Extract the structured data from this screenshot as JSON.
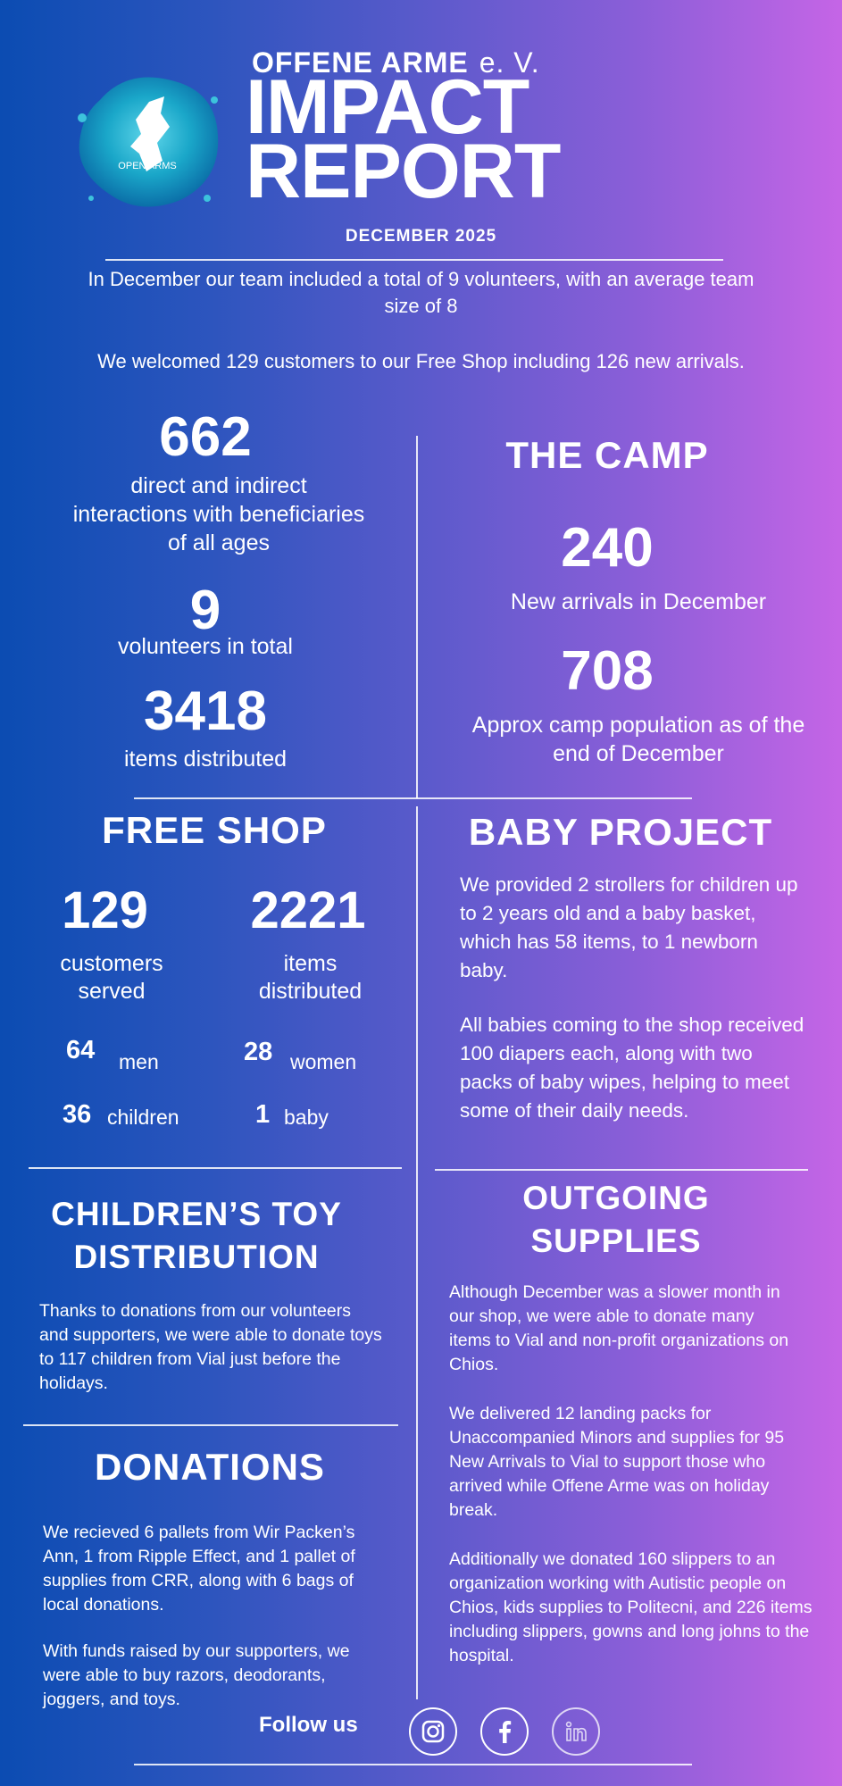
{
  "header": {
    "logo_text": "OPEN ARMS",
    "org_name": "OFFENE ARME",
    "org_suffix": "e. V.",
    "title_line1": "IMPACT",
    "title_line2": "REPORT",
    "date": "DECEMBER 2025"
  },
  "intro": {
    "volunteers_text": "In December our team included a total of 9 volunteers, with an average team size of 8",
    "customers_text": "We welcomed 129 customers to our Free Shop including 126 new arrivals."
  },
  "overview": {
    "interactions_value": "662",
    "interactions_label": "direct and indirect interactions with beneficiaries of all ages",
    "volunteers_value": "9",
    "volunteers_label": "volunteers in total",
    "items_value": "3418",
    "items_label": "items distributed"
  },
  "camp": {
    "title": "THE CAMP",
    "arrivals_value": "240",
    "arrivals_label": "New arrivals in December",
    "population_value": "708",
    "population_label": "Approx camp population as of the end of December"
  },
  "free_shop": {
    "title": "FREE SHOP",
    "customers_value": "129",
    "customers_label": "customers served",
    "items_value": "2221",
    "items_label": "items distributed",
    "men_value": "64",
    "men_label": "men",
    "women_value": "28",
    "women_label": "women",
    "children_value": "36",
    "children_label": "children",
    "baby_value": "1",
    "baby_label": "baby"
  },
  "baby_project": {
    "title": "BABY PROJECT",
    "paragraph1": "We provided 2 strollers for children up to 2 years old and a baby basket, which has 58 items, to 1 newborn baby.",
    "paragraph2": "All babies coming to the shop received 100 diapers each, along with two packs of baby wipes, helping to meet some of their daily needs."
  },
  "toy_distribution": {
    "title_line1": "CHILDREN’S TOY",
    "title_line2": "DISTRIBUTION",
    "paragraph": "Thanks to donations from our volunteers and supporters, we were able to donate toys to 117 children from Vial just before the holidays."
  },
  "outgoing": {
    "title_line1": "OUTGOING",
    "title_line2": "SUPPLIES",
    "paragraph1": "Although December was a slower month in our shop, we were able to donate many items to Vial and non-profit organizations on Chios.",
    "paragraph2": "We delivered 12 landing packs for Unaccompanied Minors and supplies for 95 New Arrivals to Vial to support those who arrived while Offene Arme was on holiday break.",
    "paragraph3": "Additionally we donated 160 slippers to an organization working with Autistic people on Chios, kids supplies to Politecni, and 226 items including slippers, gowns and long johns to the hospital."
  },
  "donations": {
    "title": "DONATIONS",
    "paragraph1": "We recieved 6 pallets from Wir Packen’s Ann, 1 from Ripple Effect, and 1 pallet of supplies from CRR, along with 6 bags of local donations.",
    "paragraph2": "With funds raised by our supporters, we were able to buy razors, deodorants,  joggers, and toys."
  },
  "footer": {
    "follow_label": "Follow us",
    "icons": [
      "instagram-icon",
      "facebook-icon",
      "linkedin-icon"
    ]
  },
  "colors": {
    "gradient_left": "#0b4cb2",
    "gradient_right": "#c565e6",
    "logo_teal": "#1aa7c9"
  }
}
